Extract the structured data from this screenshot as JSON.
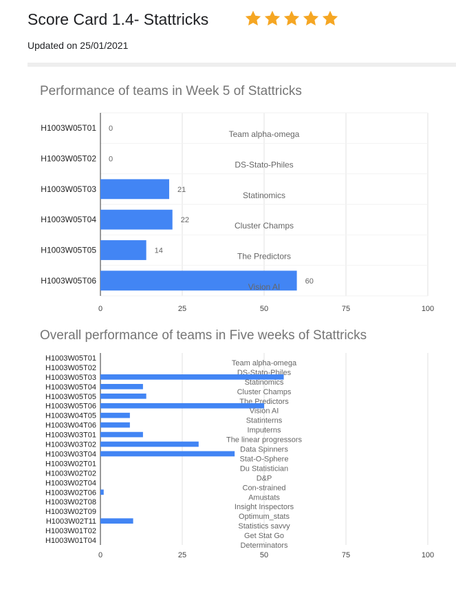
{
  "page": {
    "title": "Score Card 1.4- Stattricks",
    "rating": {
      "stars": 5,
      "max": 5,
      "color": "#f5a623"
    },
    "updated": "Updated on 25/01/2021"
  },
  "chart_data": [
    {
      "type": "bar",
      "orientation": "horizontal",
      "title": "Performance of teams in Week 5 of Stattricks",
      "categories": [
        "H1003W05T01",
        "H1003W05T02",
        "H1003W05T03",
        "H1003W05T04",
        "H1003W05T05",
        "H1003W05T06"
      ],
      "values": [
        0,
        0,
        21,
        22,
        14,
        60
      ],
      "team_names": [
        "Team alpha-omega",
        "DS-Stato-Philes",
        "Statinomics",
        "Cluster Champs",
        "The Predictors",
        "Vision AI"
      ],
      "show_value_labels": true,
      "xlim": [
        0,
        100
      ],
      "xticks": [
        0,
        25,
        50,
        75,
        100
      ],
      "grid": true,
      "bar_color": "#4285f4"
    },
    {
      "type": "bar",
      "orientation": "horizontal",
      "title": "Overall performance of teams in Five weeks of Stattricks",
      "categories": [
        "H1003W05T01",
        "H1003W05T02",
        "H1003W05T03",
        "H1003W05T04",
        "H1003W05T05",
        "H1003W05T06",
        "H1003W04T05",
        "H1003W04T06",
        "H1003W03T01",
        "H1003W03T02",
        "H1003W03T04",
        "H1003W02T01",
        "H1003W02T02",
        "H1003W02T04",
        "H1003W02T06",
        "H1003W02T08",
        "H1003W02T09",
        "H1003W02T11",
        "H1003W01T02",
        "H1003W01T04"
      ],
      "values": [
        0,
        0,
        56,
        13,
        14,
        50,
        9,
        9,
        13,
        30,
        41,
        0,
        0,
        0,
        1,
        0,
        0,
        10,
        0,
        0
      ],
      "team_names": [
        "Team alpha-omega",
        "DS-Stato-Philes",
        "Statinomics",
        "Cluster Champs",
        "The Predictors",
        "Vision AI",
        "Statinterns",
        "Imputerns",
        "The linear progressors",
        "Data Spinners",
        "Stat-O-Sphere",
        "Du Statistician",
        "D&P",
        "Con-strained",
        "Amustats",
        "Insight Inspectors",
        "Optimum_stats",
        "Statistics savvy",
        "Get Stat Go",
        "Determinators"
      ],
      "show_value_labels": false,
      "xlim": [
        0,
        100
      ],
      "xticks": [
        0,
        25,
        50,
        75,
        100
      ],
      "grid": true,
      "bar_color": "#4285f4"
    }
  ]
}
